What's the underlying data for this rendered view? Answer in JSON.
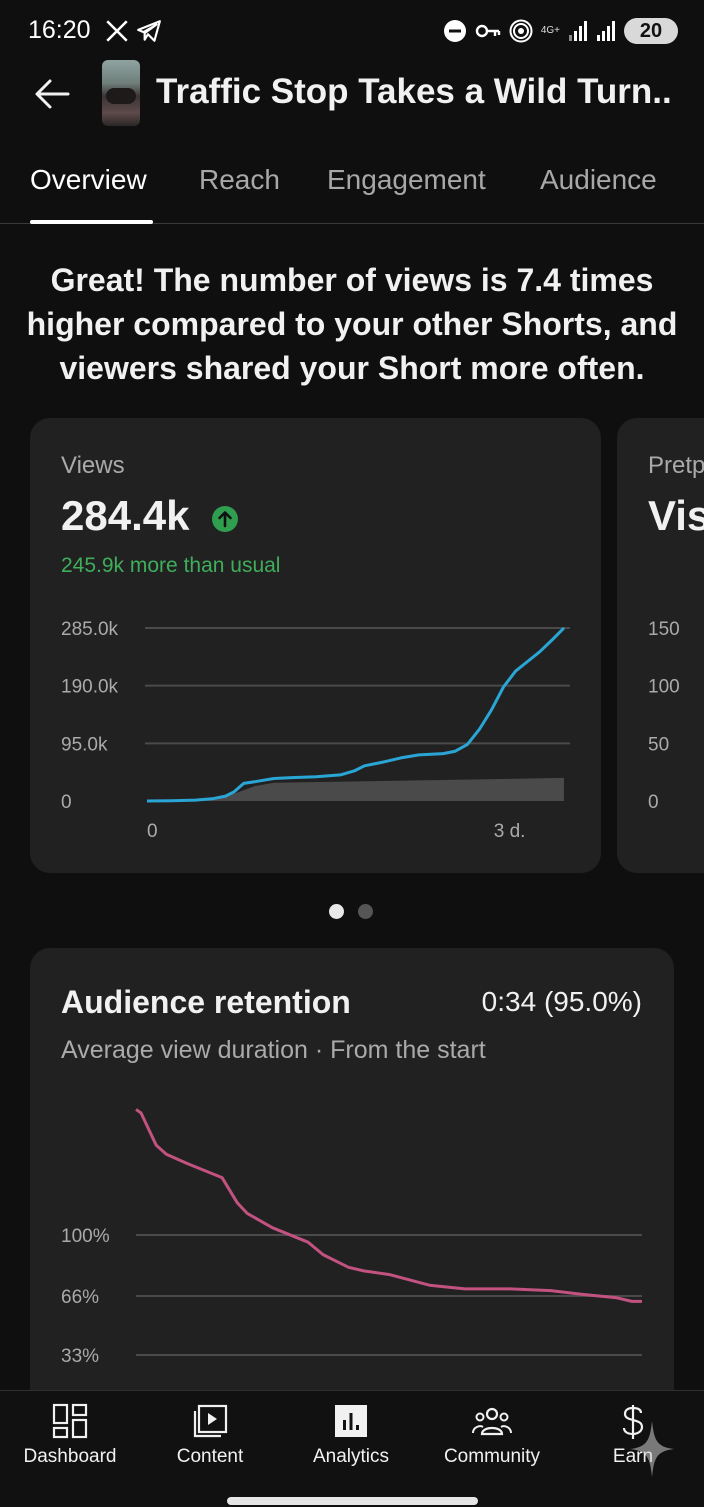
{
  "status_bar": {
    "time": "16:20",
    "network_label_1": "4G+",
    "battery_level": "20"
  },
  "header": {
    "video_title": "Traffic Stop Takes a Wild Turn.."
  },
  "tabs": [
    {
      "label": "Overview",
      "active": true
    },
    {
      "label": "Reach",
      "active": false
    },
    {
      "label": "Engagement",
      "active": false
    },
    {
      "label": "Audience",
      "active": false
    }
  ],
  "insight": {
    "text": "Great! The number of views is 7.4 times higher compared to your other Shorts, and viewers shared your Short more often."
  },
  "views_card": {
    "label": "Views",
    "value": "284.4k",
    "delta_text": "245.9k more than usual",
    "colors": {
      "line": "#2aa6d6",
      "baseline_fill": "#4a4a4a",
      "positive": "#3fae5b"
    }
  },
  "side_card": {
    "label": "Pretp",
    "value": "Vis",
    "y_ticks": [
      "150",
      "100",
      "50",
      "0"
    ]
  },
  "carousel": {
    "pages": 2,
    "active_index": 0
  },
  "retention_card": {
    "title": "Audience retention",
    "value": "0:34 (95.0%)",
    "subtitle": "Average view duration · From the start",
    "y_ticks": [
      "100%",
      "66%",
      "33%"
    ],
    "color": "#c2527f"
  },
  "chart_data": [
    {
      "type": "line",
      "title": "Views",
      "x_tick_labels": [
        "0",
        "3 d."
      ],
      "y_tick_labels": [
        "285.0k",
        "190.0k",
        "95.0k",
        "0"
      ],
      "ylim": [
        0,
        285000
      ],
      "xlim": [
        0,
        3.5
      ],
      "series": [
        {
          "name": "",
          "x": [
            0,
            0.2,
            0.4,
            0.55,
            0.65,
            0.72,
            0.8,
            0.9,
            1.05,
            1.2,
            1.4,
            1.6,
            1.72,
            1.8,
            1.95,
            2.1,
            2.25,
            2.45,
            2.55,
            2.65,
            2.75,
            2.85,
            2.95,
            3.05,
            3.15,
            3.25,
            3.35,
            3.45
          ],
          "y": [
            0,
            500,
            1500,
            4000,
            8000,
            15000,
            29000,
            32000,
            37000,
            38500,
            40000,
            43000,
            50000,
            58000,
            64000,
            71000,
            76000,
            78000,
            82000,
            93000,
            118000,
            150000,
            188000,
            214000,
            230000,
            246000,
            265000,
            285000
          ]
        },
        {
          "name": "",
          "x": [
            0,
            0.55,
            0.72,
            0.9,
            1.05,
            3.45
          ],
          "y": [
            0,
            3000,
            12000,
            25000,
            30000,
            38000
          ]
        }
      ]
    },
    {
      "type": "line",
      "title": "Audience retention",
      "y_tick_labels": [
        "100%",
        "66%",
        "33%"
      ],
      "series": [
        {
          "name": "",
          "x": [
            0,
            0.01,
            0.04,
            0.06,
            0.1,
            0.17,
            0.2,
            0.22,
            0.27,
            0.34,
            0.37,
            0.42,
            0.45,
            0.5,
            0.58,
            0.65,
            0.74,
            0.82,
            0.88,
            0.95,
            0.98,
            1.0
          ],
          "y": [
            170,
            168,
            150,
            145,
            140,
            132,
            118,
            112,
            104,
            96,
            89,
            82,
            80,
            78,
            72,
            70,
            70,
            69,
            67,
            65,
            63,
            63
          ]
        }
      ]
    }
  ],
  "bottom_nav": [
    {
      "label": "Dashboard",
      "icon": "dashboard-icon",
      "active": false
    },
    {
      "label": "Content",
      "icon": "content-icon",
      "active": false
    },
    {
      "label": "Analytics",
      "icon": "analytics-icon",
      "active": true
    },
    {
      "label": "Community",
      "icon": "community-icon",
      "active": false
    },
    {
      "label": "Earn",
      "icon": "earn-icon",
      "active": false
    }
  ]
}
